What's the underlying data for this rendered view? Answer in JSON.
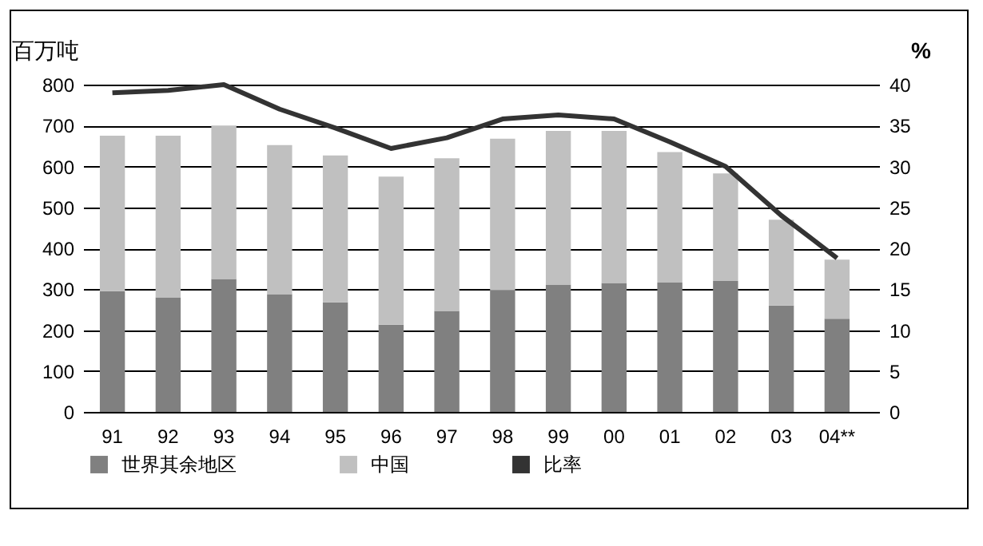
{
  "chart_data": {
    "type": "bar",
    "stacked": true,
    "ylabel": "百万吨",
    "y2label": "%",
    "categories": [
      "91",
      "92",
      "93",
      "94",
      "95",
      "96",
      "97",
      "98",
      "99",
      "00",
      "01",
      "02",
      "03",
      "04**"
    ],
    "series": [
      {
        "name": "世界其余地区",
        "color": "#808080",
        "values": [
          295,
          280,
          325,
          288,
          268,
          213,
          247,
          297,
          311,
          315,
          316,
          320,
          260,
          228
        ]
      },
      {
        "name": "中国",
        "color": "#c0c0c0",
        "values": [
          380,
          395,
          375,
          364,
          359,
          362,
          373,
          371,
          376,
          372,
          319,
          263,
          210,
          144
        ]
      },
      {
        "name": "比率",
        "type": "line",
        "axis": "y2",
        "color": "#333333",
        "values": [
          39,
          39.3,
          40,
          37,
          34.7,
          32.2,
          33.5,
          35.8,
          36.3,
          35.8,
          33,
          30,
          24,
          18.8
        ]
      }
    ],
    "ylim": [
      0,
      800
    ],
    "yticks": [
      0,
      100,
      200,
      300,
      400,
      500,
      600,
      700,
      800
    ],
    "y2lim": [
      0,
      40
    ],
    "y2ticks": [
      0,
      5,
      10,
      15,
      20,
      25,
      30,
      35,
      40
    ],
    "grid": "y",
    "legend": "bottom",
    "marker": "none",
    "line_style": "solid"
  }
}
